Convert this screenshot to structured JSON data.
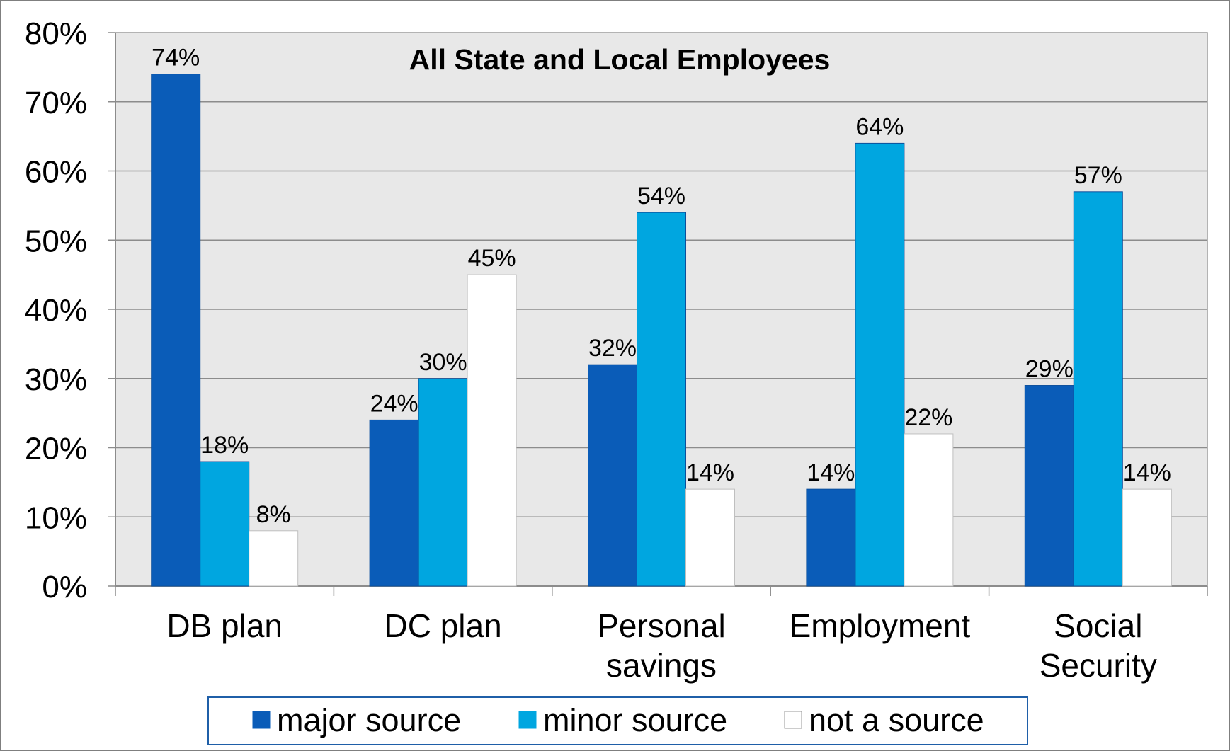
{
  "chart_data": {
    "type": "bar",
    "title": "All State and Local Employees",
    "categories": [
      [
        "DB plan"
      ],
      [
        "DC plan"
      ],
      [
        "Personal",
        "savings"
      ],
      [
        "Employment"
      ],
      [
        "Social",
        "Security"
      ]
    ],
    "series": [
      {
        "name": "major source",
        "color": "#0A5CB8",
        "values": [
          74,
          24,
          32,
          14,
          29
        ]
      },
      {
        "name": "minor source",
        "color": "#00A6E0",
        "values": [
          18,
          30,
          54,
          64,
          57
        ]
      },
      {
        "name": "not a source",
        "color": "#FFFFFF",
        "values": [
          8,
          45,
          14,
          22,
          14
        ]
      }
    ],
    "ylim": [
      0,
      80
    ],
    "ytick_step": 10,
    "value_suffix": "%",
    "grid": true,
    "plot_background": "#E8E8E8",
    "frame_color": "#7F7F7F",
    "legend_border_color": "#1F5FA8",
    "legend_position": "bottom"
  }
}
